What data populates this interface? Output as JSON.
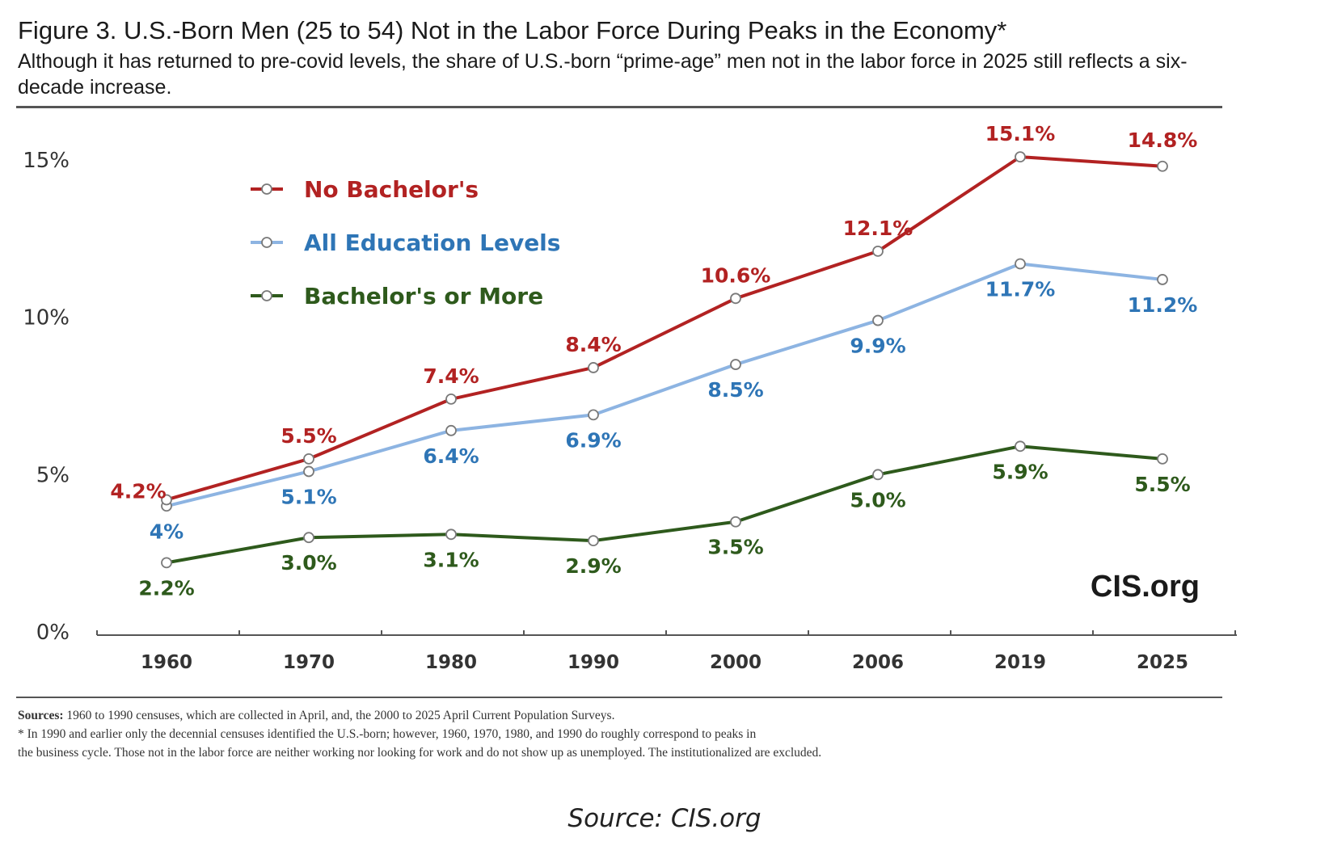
{
  "figure": {
    "title": "Figure 3. U.S.-Born Men (25 to 54) Not in the Labor Force During Peaks in the Economy*",
    "subtitle": "Although it has returned to pre-covid levels, the share of U.S.-born “prime-age” men not in the labor force in 2025 still reflects a six-decade increase.",
    "brand": "CIS.org"
  },
  "chart_data": {
    "type": "line",
    "categories": [
      "1960",
      "1970",
      "1980",
      "1990",
      "2000",
      "2006",
      "2019",
      "2025"
    ],
    "y_ticks": [
      "0%",
      "5%",
      "10%",
      "15%"
    ],
    "ylim": [
      0,
      15
    ],
    "legend_position": "top-left",
    "grid": false,
    "series": [
      {
        "name": "No Bachelor's",
        "color": "#b22222",
        "values": [
          4.2,
          5.5,
          7.4,
          8.4,
          10.6,
          12.1,
          15.1,
          14.8
        ],
        "labels": [
          "4.2%",
          "5.5%",
          "7.4%",
          "8.4%",
          "10.6%",
          "12.1%",
          "15.1%",
          "14.8%"
        ],
        "label_placement": "above"
      },
      {
        "name": "All Education Levels",
        "color": "#2e75b6",
        "line_color": "#8db4e2",
        "values": [
          4.0,
          5.1,
          6.4,
          6.9,
          8.5,
          9.9,
          11.7,
          11.2
        ],
        "labels": [
          "4%",
          "5.1%",
          "6.4%",
          "6.9%",
          "8.5%",
          "9.9%",
          "11.7%",
          "11.2%"
        ],
        "label_placement": "below"
      },
      {
        "name": "Bachelor's or More",
        "color": "#2e5a1c",
        "values": [
          2.2,
          3.0,
          3.1,
          2.9,
          3.5,
          5.0,
          5.9,
          5.5
        ],
        "labels": [
          "2.2%",
          "3.0%",
          "3.1%",
          "2.9%",
          "3.5%",
          "5.0%",
          "5.9%",
          "5.5%"
        ],
        "label_placement": "below"
      }
    ]
  },
  "notes": {
    "sources_label": "Sources:",
    "sources_text": " 1960 to 1990 censuses, which are collected in April, and, the 2000 to 2025 April Current Population Surveys.",
    "footnote_line1": "* In 1990 and earlier only the decennial censuses identified the U.S.-born; however, 1960, 1970, 1980, and 1990 do roughly correspond to peaks in",
    "footnote_line2": "the business cycle. Those not in the labor force are neither working nor looking for work and do not show up as unemployed. The institutionalized are excluded."
  },
  "caption": "Source: CIS.org"
}
